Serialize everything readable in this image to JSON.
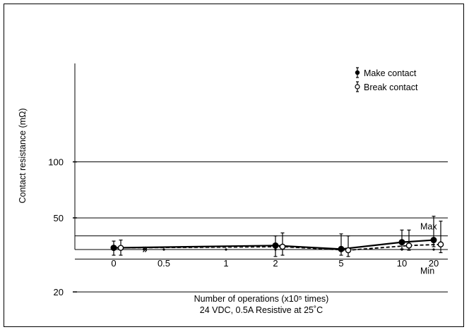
{
  "chart_data": {
    "type": "line",
    "xlabel": "Number of operations (x10⁵ times)",
    "subtitle": "24 VDC, 0.5A Resistive at 25˚C",
    "ylabel": "Contact resistance (mΩ)",
    "y_scale": "log",
    "x_scale": "categorical",
    "categories": [
      "0",
      "0.5",
      "1",
      "2",
      "5",
      "10",
      "20"
    ],
    "y_ticks": [
      {
        "value": 100,
        "label": "100"
      },
      {
        "value": 50,
        "label": "50"
      },
      {
        "value": 20,
        "label": "20"
      }
    ],
    "ylim": [
      13,
      160
    ],
    "grid": true,
    "legend_position": "top-right",
    "annotations": [
      {
        "text": "Max",
        "y": 40
      },
      {
        "text": "Min",
        "y": 30
      }
    ],
    "axis_break_marks": [
      "»",
      "»"
    ],
    "series": [
      {
        "name": "Make contact",
        "marker": "filled-circle",
        "line": "solid",
        "points": [
          {
            "x": "0",
            "y": 34.5,
            "min": 31.5,
            "max": 37.5
          },
          {
            "x": "2",
            "y": 35.5,
            "min": 31,
            "max": 40
          },
          {
            "x": "5",
            "y": 34,
            "min": 31.5,
            "max": 41
          },
          {
            "x": "10",
            "y": 37,
            "min": 34,
            "max": 43
          },
          {
            "x": "20",
            "y": 38,
            "min": 35,
            "max": 51
          }
        ]
      },
      {
        "name": "Break contact",
        "marker": "open-circle",
        "line": "dashed",
        "points": [
          {
            "x": "0",
            "y": 34.5,
            "min": 31.5,
            "max": 38
          },
          {
            "x": "2",
            "y": 35,
            "min": 31.5,
            "max": 41.5
          },
          {
            "x": "5",
            "y": 33.5,
            "min": 31,
            "max": 40
          },
          {
            "x": "10",
            "y": 35.5,
            "min": 33.5,
            "max": 43
          },
          {
            "x": "20",
            "y": 36,
            "min": 32.5,
            "max": 48
          }
        ]
      }
    ]
  }
}
